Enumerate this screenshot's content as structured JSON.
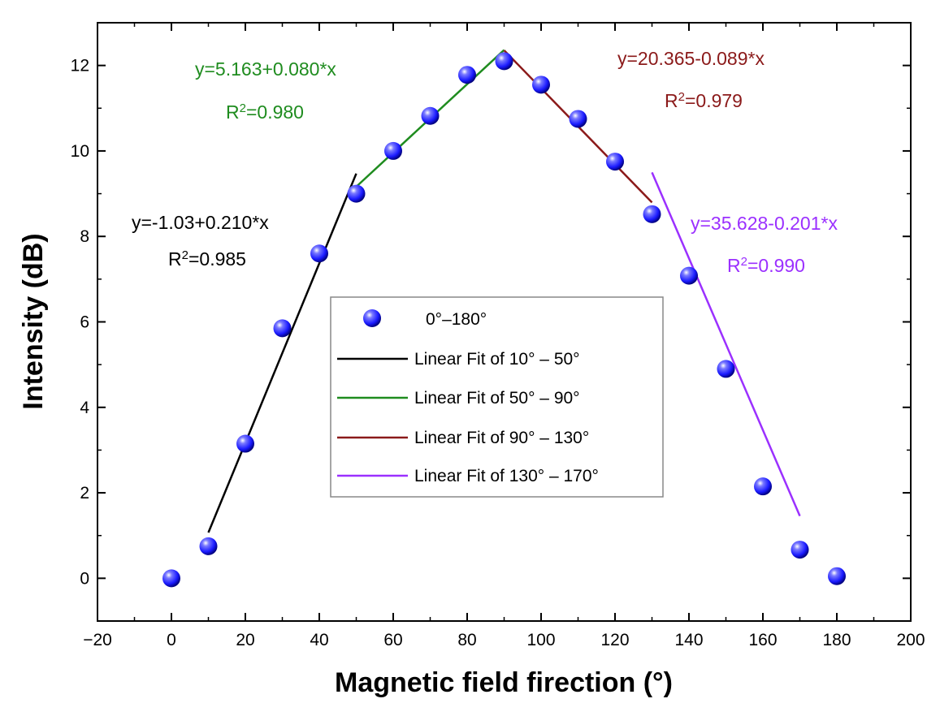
{
  "chart_data": {
    "type": "scatter",
    "xlabel": "Magnetic field firection (°)",
    "ylabel": "Intensity (dB)",
    "xlim": [
      -20,
      200
    ],
    "ylim": [
      -1,
      13
    ],
    "x_ticks": [
      -20,
      0,
      20,
      40,
      60,
      80,
      100,
      120,
      140,
      160,
      180,
      200
    ],
    "y_ticks": [
      0,
      2,
      4,
      6,
      8,
      10,
      12
    ],
    "x_tick_labels": [
      "−20",
      "0",
      "20",
      "40",
      "60",
      "80",
      "100",
      "120",
      "140",
      "160",
      "180",
      "200"
    ],
    "y_tick_labels": [
      "0",
      "2",
      "4",
      "6",
      "8",
      "10",
      "12"
    ],
    "series": [
      {
        "name": "0°–180°",
        "x": [
          0,
          10,
          20,
          30,
          40,
          50,
          60,
          70,
          80,
          90,
          100,
          110,
          120,
          130,
          140,
          150,
          160,
          170,
          180
        ],
        "y": [
          0.0,
          0.75,
          3.15,
          5.85,
          7.6,
          9.0,
          10.0,
          10.82,
          11.78,
          12.1,
          11.55,
          10.75,
          9.75,
          8.52,
          7.08,
          4.9,
          2.15,
          0.67,
          0.05
        ],
        "color": "#1a1aff"
      }
    ],
    "fits": [
      {
        "name": "Linear Fit of 10° – 50°",
        "color": "#000000",
        "intercept": -1.03,
        "slope": 0.21,
        "x_range": [
          10,
          50
        ],
        "equation": "y=-1.03+0.210*x",
        "r2_prefix": "R",
        "r2_sup": "2",
        "r2_value": "=0.985"
      },
      {
        "name": "Linear Fit of 50° – 90°",
        "color": "#1f8c1f",
        "intercept": 5.163,
        "slope": 0.08,
        "x_range": [
          50,
          90
        ],
        "equation": "y=5.163+0.080*x",
        "r2_prefix": "R",
        "r2_sup": "2",
        "r2_value": "=0.980"
      },
      {
        "name": "Linear Fit of 90° – 130°",
        "color": "#8b1a1a",
        "intercept": 20.365,
        "slope": -0.089,
        "x_range": [
          90,
          130
        ],
        "equation": "y=20.365-0.089*x",
        "r2_prefix": "R",
        "r2_sup": "2",
        "r2_value": "=0.979"
      },
      {
        "name": "Linear Fit of 130° – 170°",
        "color": "#9b30ff",
        "intercept": 35.628,
        "slope": -0.201,
        "x_range": [
          130,
          170
        ],
        "equation": "y=35.628-0.201*x",
        "r2_prefix": "R",
        "r2_sup": "2",
        "r2_value": "=0.990"
      }
    ],
    "legend_position": "center"
  }
}
